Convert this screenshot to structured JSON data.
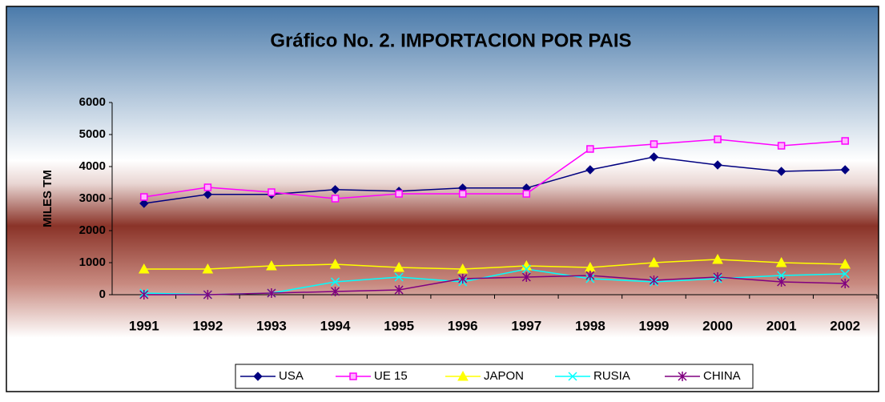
{
  "chart_data": {
    "type": "line",
    "title": "Gráfico No. 2.  IMPORTACION POR PAIS",
    "y_label": "MILES TM",
    "categories": [
      "1991",
      "1992",
      "1993",
      "1994",
      "1995",
      "1996",
      "1997",
      "1998",
      "1999",
      "2000",
      "2001",
      "2002"
    ],
    "series": [
      {
        "name": "USA",
        "color": "#000080",
        "marker": "diamond",
        "values": [
          2850,
          3130,
          3130,
          3280,
          3230,
          3330,
          3330,
          3900,
          4300,
          4050,
          3850,
          3900
        ]
      },
      {
        "name": "UE 15",
        "color": "#ff00ff",
        "marker": "square",
        "values": [
          3050,
          3350,
          3200,
          3000,
          3150,
          3150,
          3150,
          4550,
          4700,
          4850,
          4650,
          4800
        ]
      },
      {
        "name": "JAPON",
        "color": "#ffff00",
        "marker": "triangle",
        "values": [
          800,
          800,
          900,
          950,
          850,
          800,
          900,
          850,
          1000,
          1100,
          1000,
          950
        ]
      },
      {
        "name": "RUSIA",
        "color": "#00ffff",
        "marker": "x",
        "values": [
          50,
          0,
          50,
          400,
          550,
          400,
          800,
          500,
          400,
          500,
          600,
          650
        ]
      },
      {
        "name": "CHINA",
        "color": "#800080",
        "marker": "star",
        "values": [
          0,
          0,
          50,
          100,
          150,
          500,
          550,
          600,
          450,
          550,
          400,
          350
        ]
      }
    ],
    "ylim": [
      0,
      6000
    ],
    "yticks": [
      0,
      1000,
      2000,
      3000,
      4000,
      5000,
      6000
    ],
    "grid": false,
    "legend": "bottom"
  }
}
